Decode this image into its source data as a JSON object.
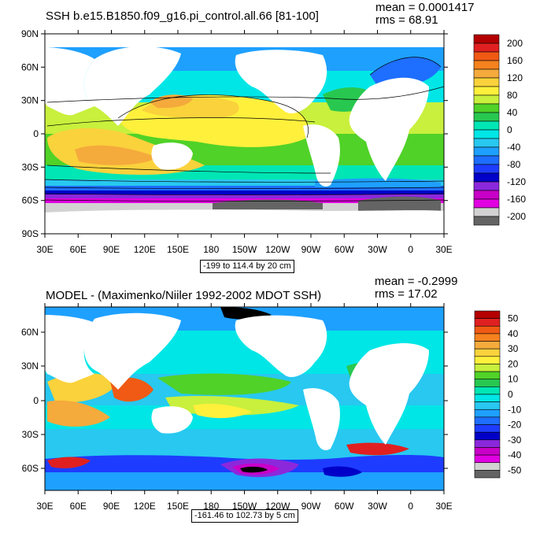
{
  "top": {
    "title": "SSH b.e15.B1850.f09_g16.pi_control.all.66 [81-100]",
    "mean": "mean = 0.0001417",
    "rms": "rms = 68.91",
    "contour_info": "-199 to 114.4 by 20 cm",
    "lat_labels": [
      "90N",
      "60N",
      "30N",
      "0",
      "30S",
      "60S",
      "90S"
    ],
    "lon_labels": [
      "30E",
      "60E",
      "90E",
      "120E",
      "150E",
      "180",
      "150W",
      "120W",
      "90W",
      "60W",
      "30W",
      "0",
      "30E"
    ],
    "colorbar_labels": [
      "200",
      "160",
      "120",
      "80",
      "40",
      "0",
      "-40",
      "-80",
      "-120",
      "-160",
      "-200"
    ],
    "colorbar_colors": [
      "#b40000",
      "#e02020",
      "#f05a14",
      "#f5821e",
      "#f5aa3c",
      "#fad23c",
      "#fff03c",
      "#c8f03c",
      "#50d228",
      "#28c850",
      "#00e6b4",
      "#00e6e6",
      "#28c8f0",
      "#1ea0ff",
      "#1e6eff",
      "#1e3cff",
      "#0000c8",
      "#8c28dc",
      "#c800c8",
      "#e100e1",
      "#d2d2d2",
      "#646464"
    ]
  },
  "bottom": {
    "title": "MODEL - (Maximenko/Niiler 1992-2002 MDOT SSH)",
    "mean": "mean = -0.2999",
    "rms": "rms = 17.02",
    "contour_info": "-161.46 to 102.73 by 5 cm",
    "lat_labels": [
      "60N",
      "30N",
      "0",
      "30S",
      "60S"
    ],
    "lon_labels": [
      "30E",
      "60E",
      "90E",
      "120E",
      "150E",
      "180",
      "150W",
      "120W",
      "90W",
      "60W",
      "30W",
      "0",
      "30E"
    ],
    "colorbar_labels": [
      "50",
      "40",
      "30",
      "20",
      "10",
      "0",
      "-10",
      "-20",
      "-30",
      "-40",
      "-50"
    ],
    "colorbar_colors": [
      "#b40000",
      "#e02020",
      "#f05a14",
      "#f5821e",
      "#f5aa3c",
      "#fad23c",
      "#fff03c",
      "#c8f03c",
      "#50d228",
      "#28c850",
      "#00e6b4",
      "#00e6e6",
      "#28c8f0",
      "#1ea0ff",
      "#1e6eff",
      "#1e3cff",
      "#0000c8",
      "#8c28dc",
      "#c800c8",
      "#e100e1",
      "#d2d2d2",
      "#646464"
    ]
  }
}
